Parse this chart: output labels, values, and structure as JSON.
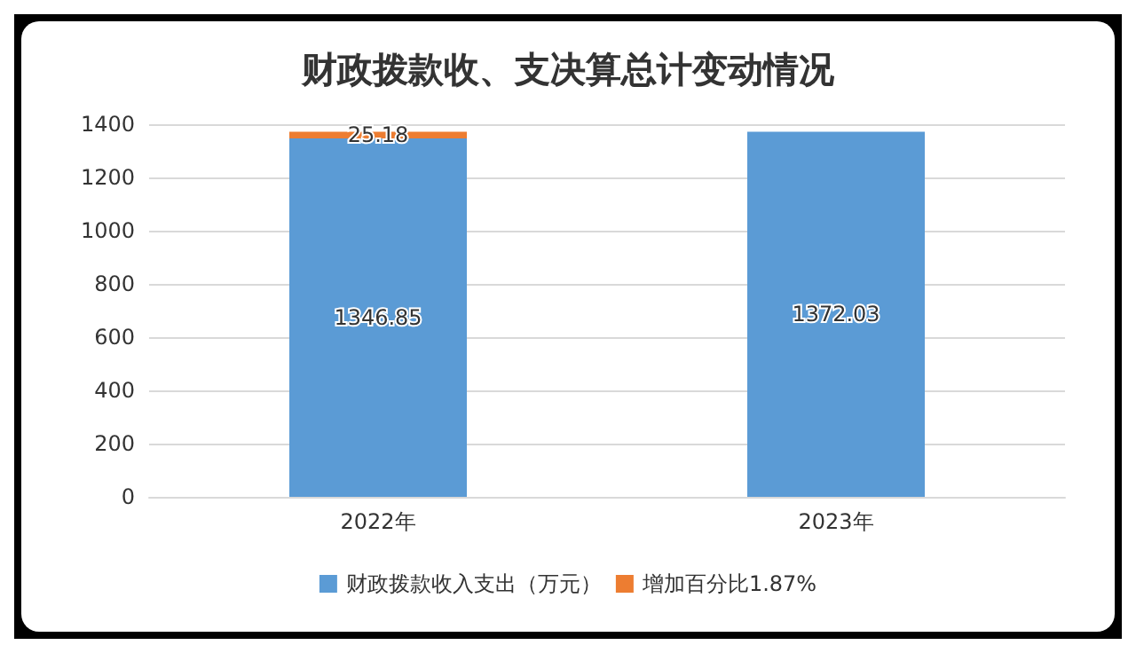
{
  "chart_data": {
    "type": "bar",
    "title": "财政拨款收、支决算总计变动情况",
    "categories": [
      "2022年",
      "2023年"
    ],
    "stacked": true,
    "series": [
      {
        "name": "财政拨款收入支出（万元）",
        "color": "#5b9bd5",
        "values": [
          1346.85,
          1372.03
        ]
      },
      {
        "name": "增加百分比1.87%",
        "color": "#ed7d31",
        "values": [
          25.18,
          null
        ]
      }
    ],
    "ylim": [
      0,
      1400
    ],
    "yticks": [
      0,
      200,
      400,
      600,
      800,
      1000,
      1200,
      1400
    ],
    "grid": "y",
    "legend": "bottom",
    "data_labels": true
  }
}
